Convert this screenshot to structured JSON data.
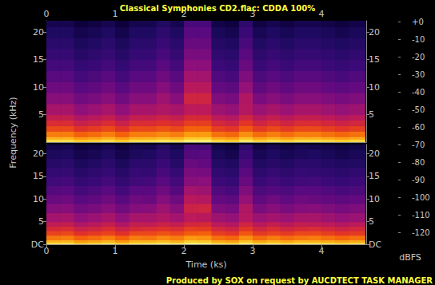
{
  "chart_data": {
    "type": "heatmap",
    "title": "Classical Symphonies CD2.flac: CDDA 100%",
    "footer": "Produced by SOX on request by AUCDTECT TASK MANAGER",
    "x_label": "Time (ks)",
    "y_label": "Frequency (kHz)",
    "xlim": [
      0,
      4.65
    ],
    "xticks": [
      0,
      1,
      2,
      3,
      4
    ],
    "ylim": [
      0,
      22.05
    ],
    "time_bins": [
      0,
      0.2,
      0.4,
      0.6,
      0.8,
      1,
      1.2,
      1.4,
      1.6,
      1.8,
      2,
      2.2,
      2.4,
      2.6,
      2.8,
      3,
      3.2,
      3.4,
      3.6,
      3.8,
      4,
      4.2,
      4.4,
      4.63
    ],
    "freq_bins": [
      0,
      0.5,
      1,
      2,
      3,
      4,
      5,
      7,
      9,
      11,
      13,
      15,
      17,
      19,
      21,
      22.05
    ],
    "channels": [
      {
        "yticks": [
          5,
          10,
          15,
          20
        ],
        "cells": [
          [
            -15,
            -15,
            -20,
            -18,
            -15,
            -20,
            -15,
            -15,
            -13,
            -15,
            -10,
            -10,
            -17,
            -19,
            -12,
            -18,
            -15,
            -18,
            -15,
            -15,
            -17,
            -19,
            -17
          ],
          [
            -25,
            -25,
            -30,
            -28,
            -25,
            -30,
            -25,
            -25,
            -23,
            -25,
            -20,
            -20,
            -27,
            -29,
            -22,
            -28,
            -25,
            -28,
            -25,
            -25,
            -27,
            -29,
            -27
          ],
          [
            -35,
            -35,
            -40,
            -38,
            -35,
            -40,
            -35,
            -35,
            -33,
            -35,
            -30,
            -30,
            -37,
            -39,
            -32,
            -38,
            -35,
            -38,
            -35,
            -35,
            -37,
            -39,
            -37
          ],
          [
            -45,
            -45,
            -50,
            -48,
            -45,
            -50,
            -45,
            -45,
            -43,
            -45,
            -40,
            -40,
            -47,
            -49,
            -42,
            -48,
            -45,
            -48,
            -45,
            -45,
            -47,
            -49,
            -47
          ],
          [
            -52,
            -52,
            -57,
            -55,
            -52,
            -57,
            -52,
            -52,
            -50,
            -52,
            -47,
            -47,
            -54,
            -56,
            -49,
            -55,
            -52,
            -55,
            -52,
            -52,
            -54,
            -56,
            -54
          ],
          [
            -58,
            -58,
            -63,
            -61,
            -58,
            -63,
            -58,
            -58,
            -56,
            -58,
            -53,
            -53,
            -60,
            -62,
            -55,
            -61,
            -58,
            -61,
            -58,
            -58,
            -60,
            -62,
            -60
          ],
          [
            -65,
            -65,
            -70,
            -68,
            -65,
            -70,
            -65,
            -65,
            -63,
            -65,
            -60,
            -60,
            -67,
            -69,
            -62,
            -68,
            -65,
            -68,
            -65,
            -65,
            -67,
            -69,
            -67
          ],
          [
            -72,
            -72,
            -77,
            -75,
            -72,
            -77,
            -72,
            -72,
            -67,
            -72,
            -55,
            -55,
            -74,
            -76,
            -63,
            -75,
            -72,
            -75,
            -72,
            -72,
            -74,
            -76,
            -74
          ],
          [
            -78,
            -78,
            -83,
            -81,
            -78,
            -83,
            -78,
            -78,
            -73,
            -78,
            -61,
            -61,
            -80,
            -82,
            -69,
            -81,
            -78,
            -81,
            -78,
            -78,
            -80,
            -82,
            -80
          ],
          [
            -83,
            -83,
            -88,
            -86,
            -83,
            -88,
            -83,
            -83,
            -78,
            -83,
            -66,
            -66,
            -85,
            -87,
            -74,
            -86,
            -83,
            -86,
            -83,
            -83,
            -85,
            -87,
            -85
          ],
          [
            -88,
            -88,
            -93,
            -91,
            -88,
            -93,
            -88,
            -88,
            -83,
            -88,
            -71,
            -71,
            -90,
            -92,
            -79,
            -91,
            -88,
            -91,
            -88,
            -88,
            -90,
            -92,
            -90
          ],
          [
            -92,
            -92,
            -97,
            -95,
            -92,
            -97,
            -92,
            -92,
            -87,
            -92,
            -75,
            -75,
            -94,
            -96,
            -83,
            -95,
            -92,
            -95,
            -92,
            -92,
            -94,
            -96,
            -94
          ],
          [
            -96,
            -96,
            -101,
            -99,
            -96,
            -101,
            -96,
            -96,
            -91,
            -96,
            -79,
            -79,
            -98,
            -100,
            -87,
            -99,
            -96,
            -99,
            -96,
            -96,
            -98,
            -100,
            -98
          ],
          [
            -100,
            -100,
            -105,
            -103,
            -100,
            -105,
            -100,
            -100,
            -95,
            -100,
            -83,
            -83,
            -102,
            -104,
            -91,
            -103,
            -100,
            -103,
            -100,
            -100,
            -102,
            -104,
            -102
          ],
          [
            -104,
            -104,
            -109,
            -107,
            -104,
            -109,
            -104,
            -104,
            -99,
            -104,
            -87,
            -87,
            -106,
            -108,
            -95,
            -107,
            -104,
            -107,
            -104,
            -104,
            -106,
            -108,
            -106
          ]
        ]
      },
      {
        "yticks": [
          {
            "value": 0,
            "label": "DC"
          },
          5,
          10,
          15,
          20
        ],
        "cells": [
          [
            -16,
            -15,
            -21,
            -18,
            -15,
            -20,
            -16,
            -15,
            -13,
            -15,
            -10,
            -11,
            -17,
            -19,
            -12,
            -18,
            -15,
            -18,
            -16,
            -15,
            -17,
            -19,
            -17
          ],
          [
            -26,
            -25,
            -30,
            -28,
            -25,
            -31,
            -25,
            -25,
            -23,
            -26,
            -20,
            -21,
            -27,
            -29,
            -22,
            -28,
            -25,
            -28,
            -25,
            -26,
            -27,
            -29,
            -27
          ],
          [
            -36,
            -35,
            -40,
            -38,
            -35,
            -40,
            -35,
            -36,
            -33,
            -35,
            -30,
            -31,
            -37,
            -39,
            -32,
            -38,
            -35,
            -38,
            -36,
            -35,
            -37,
            -39,
            -37
          ],
          [
            -46,
            -45,
            -50,
            -48,
            -46,
            -50,
            -45,
            -45,
            -43,
            -45,
            -41,
            -40,
            -47,
            -49,
            -42,
            -48,
            -46,
            -48,
            -45,
            -45,
            -47,
            -49,
            -48
          ],
          [
            -53,
            -52,
            -57,
            -55,
            -52,
            -57,
            -53,
            -52,
            -50,
            -52,
            -47,
            -48,
            -54,
            -56,
            -49,
            -55,
            -52,
            -55,
            -53,
            -52,
            -54,
            -56,
            -54
          ],
          [
            -59,
            -58,
            -63,
            -61,
            -58,
            -63,
            -58,
            -59,
            -56,
            -58,
            -54,
            -53,
            -60,
            -62,
            -55,
            -61,
            -58,
            -61,
            -58,
            -59,
            -60,
            -62,
            -60
          ],
          [
            -66,
            -65,
            -70,
            -68,
            -65,
            -70,
            -65,
            -65,
            -63,
            -66,
            -60,
            -61,
            -67,
            -69,
            -62,
            -68,
            -66,
            -68,
            -65,
            -65,
            -67,
            -69,
            -68
          ],
          [
            -73,
            -72,
            -77,
            -75,
            -72,
            -77,
            -73,
            -72,
            -67,
            -72,
            -56,
            -55,
            -74,
            -76,
            -63,
            -75,
            -72,
            -75,
            -73,
            -72,
            -74,
            -76,
            -74
          ],
          [
            -79,
            -78,
            -83,
            -81,
            -78,
            -83,
            -78,
            -79,
            -73,
            -78,
            -61,
            -62,
            -80,
            -82,
            -69,
            -81,
            -78,
            -81,
            -78,
            -79,
            -80,
            -82,
            -80
          ],
          [
            -84,
            -83,
            -88,
            -86,
            -83,
            -88,
            -83,
            -83,
            -78,
            -84,
            -66,
            -67,
            -85,
            -87,
            -74,
            -86,
            -84,
            -86,
            -83,
            -83,
            -85,
            -87,
            -86
          ],
          [
            -89,
            -88,
            -93,
            -91,
            -88,
            -93,
            -89,
            -88,
            -83,
            -88,
            -72,
            -71,
            -90,
            -92,
            -79,
            -91,
            -88,
            -91,
            -89,
            -88,
            -90,
            -92,
            -90
          ],
          [
            -93,
            -92,
            -97,
            -95,
            -92,
            -97,
            -92,
            -93,
            -87,
            -92,
            -75,
            -76,
            -94,
            -96,
            -83,
            -95,
            -92,
            -95,
            -92,
            -93,
            -94,
            -96,
            -94
          ],
          [
            -97,
            -96,
            -101,
            -99,
            -96,
            -101,
            -96,
            -96,
            -91,
            -97,
            -79,
            -80,
            -98,
            -100,
            -87,
            -99,
            -97,
            -99,
            -96,
            -96,
            -98,
            -100,
            -99
          ],
          [
            -101,
            -100,
            -105,
            -103,
            -100,
            -105,
            -101,
            -100,
            -95,
            -100,
            -84,
            -83,
            -102,
            -104,
            -91,
            -103,
            -100,
            -103,
            -101,
            -100,
            -102,
            -104,
            -102
          ],
          [
            -105,
            -104,
            -109,
            -107,
            -104,
            -109,
            -104,
            -105,
            -99,
            -104,
            -87,
            -88,
            -106,
            -108,
            -95,
            -107,
            -104,
            -107,
            -104,
            -105,
            -106,
            -108,
            -106
          ]
        ]
      }
    ],
    "colorbar": {
      "label": "dBFS",
      "range": [
        -120,
        0
      ],
      "ticks": [
        {
          "value": 0,
          "label": "+0"
        },
        -10,
        -20,
        -30,
        -40,
        -50,
        -60,
        -70,
        -80,
        -90,
        -100,
        -110,
        -120
      ]
    }
  }
}
